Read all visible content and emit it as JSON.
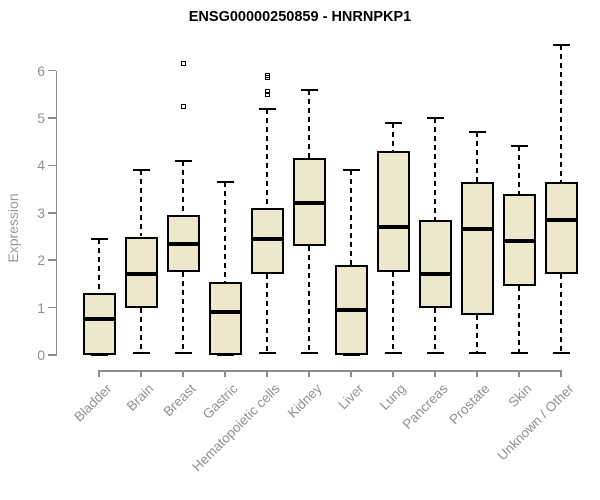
{
  "title": "ENSG00000250859 - HNRNPKP1",
  "chart_data": {
    "type": "boxplot",
    "title": "ENSG00000250859 - HNRNPKP1",
    "xlabel": "",
    "ylabel": "Expression",
    "ylim": [
      0,
      6.6
    ],
    "yticks": [
      0,
      1,
      2,
      3,
      4,
      5,
      6
    ],
    "grid": false,
    "legend": null,
    "categories": [
      "Bladder",
      "Brain",
      "Breast",
      "Gastric",
      "Hematopoietic cells",
      "Kidney",
      "Liver",
      "Lung",
      "Pancreas",
      "Prostate",
      "Skin",
      "Unknown / Other"
    ],
    "series": [
      {
        "category": "Bladder",
        "whisker_low": 0,
        "q1": 0,
        "median": 0.75,
        "q3": 1.3,
        "whisker_high": 2.45,
        "outliers": []
      },
      {
        "category": "Brain",
        "whisker_low": 0.05,
        "q1": 1.0,
        "median": 1.7,
        "q3": 2.5,
        "whisker_high": 3.9,
        "outliers": []
      },
      {
        "category": "Breast",
        "whisker_low": 0.05,
        "q1": 1.75,
        "median": 2.35,
        "q3": 2.95,
        "whisker_high": 4.1,
        "outliers": [
          6.15,
          5.25
        ]
      },
      {
        "category": "Gastric",
        "whisker_low": 0,
        "q1": 0,
        "median": 0.9,
        "q3": 1.55,
        "whisker_high": 3.65,
        "outliers": []
      },
      {
        "category": "Hematopoietic cells",
        "whisker_low": 0.05,
        "q1": 1.7,
        "median": 2.45,
        "q3": 3.1,
        "whisker_high": 5.2,
        "outliers": [
          5.9,
          5.85,
          5.55,
          5.5
        ]
      },
      {
        "category": "Kidney",
        "whisker_low": 0.05,
        "q1": 2.3,
        "median": 3.2,
        "q3": 4.15,
        "whisker_high": 5.6,
        "outliers": []
      },
      {
        "category": "Liver",
        "whisker_low": 0,
        "q1": 0,
        "median": 0.95,
        "q3": 1.9,
        "whisker_high": 3.9,
        "outliers": []
      },
      {
        "category": "Lung",
        "whisker_low": 0.05,
        "q1": 1.75,
        "median": 2.7,
        "q3": 4.3,
        "whisker_high": 4.9,
        "outliers": []
      },
      {
        "category": "Pancreas",
        "whisker_low": 0.05,
        "q1": 1.0,
        "median": 1.7,
        "q3": 2.85,
        "whisker_high": 5.0,
        "outliers": []
      },
      {
        "category": "Prostate",
        "whisker_low": 0.05,
        "q1": 0.85,
        "median": 2.65,
        "q3": 3.65,
        "whisker_high": 4.7,
        "outliers": []
      },
      {
        "category": "Skin",
        "whisker_low": 0.05,
        "q1": 1.45,
        "median": 2.4,
        "q3": 3.4,
        "whisker_high": 4.4,
        "outliers": []
      },
      {
        "category": "Unknown / Other",
        "whisker_low": 0.05,
        "q1": 1.7,
        "median": 2.85,
        "q3": 3.65,
        "whisker_high": 6.55,
        "outliers": []
      }
    ]
  },
  "colors": {
    "box_fill": "#EDE8CC",
    "box_border": "#000000",
    "median": "#000000",
    "whisker": "#000000",
    "axis": "#8C8C8C",
    "tick_label": "#919191",
    "axis_label": "#9A9A9A",
    "title": "#000000",
    "background": "#FFFFFF"
  }
}
